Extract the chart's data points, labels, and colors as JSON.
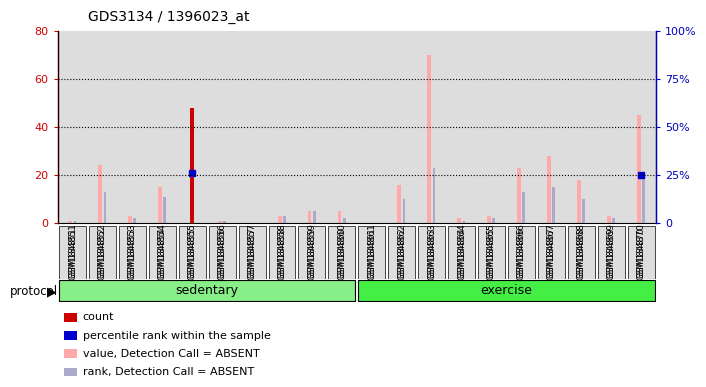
{
  "title": "GDS3134 / 1396023_at",
  "samples": [
    "GSM184851",
    "GSM184852",
    "GSM184853",
    "GSM184854",
    "GSM184855",
    "GSM184856",
    "GSM184857",
    "GSM184858",
    "GSM184859",
    "GSM184860",
    "GSM184861",
    "GSM184862",
    "GSM184863",
    "GSM184864",
    "GSM184865",
    "GSM184866",
    "GSM184867",
    "GSM184868",
    "GSM184869",
    "GSM184870"
  ],
  "count_values": [
    0,
    0,
    0,
    0,
    48,
    0,
    0,
    0,
    0,
    0,
    0,
    0,
    0,
    0,
    0,
    0,
    0,
    0,
    0,
    0
  ],
  "percentile_rank_values": [
    0,
    0,
    0,
    0,
    21,
    0,
    0,
    0,
    0,
    0,
    0,
    0,
    0,
    0,
    0,
    0,
    0,
    0,
    0,
    20
  ],
  "value_absent_values": [
    1,
    24,
    3,
    15,
    0,
    1,
    0,
    3,
    5,
    5,
    0,
    16,
    70,
    2,
    3,
    23,
    28,
    18,
    3,
    45
  ],
  "rank_absent_values": [
    1,
    13,
    2,
    11,
    0,
    1,
    0,
    3,
    5,
    2,
    0,
    10,
    23,
    1,
    2,
    13,
    15,
    10,
    2,
    20
  ],
  "count_color": "#cc0000",
  "percentile_color": "#0000cc",
  "value_absent_color": "#ffaaaa",
  "rank_absent_color": "#aaaacc",
  "ylim_left": [
    0,
    80
  ],
  "ylim_right": [
    0,
    100
  ],
  "yticks_left": [
    0,
    20,
    40,
    60,
    80
  ],
  "yticks_right": [
    0,
    25,
    50,
    75,
    100
  ],
  "ytick_labels_left": [
    "0",
    "20",
    "40",
    "60",
    "80"
  ],
  "ytick_labels_right": [
    "0",
    "25%",
    "50%",
    "75%",
    "100%"
  ],
  "ylabel_left_color": "#cc0000",
  "ylabel_right_color": "#0000bb",
  "col_bg_color": "#dddddd",
  "group_sed_color": "#88ee88",
  "group_ex_color": "#44ee44",
  "legend_items": [
    {
      "label": "count",
      "color": "#cc0000"
    },
    {
      "label": "percentile rank within the sample",
      "color": "#0000cc"
    },
    {
      "label": "value, Detection Call = ABSENT",
      "color": "#ffaaaa"
    },
    {
      "label": "rank, Detection Call = ABSENT",
      "color": "#aaaacc"
    }
  ],
  "background_color": "#ffffff",
  "plot_bg_color": "#ffffff"
}
